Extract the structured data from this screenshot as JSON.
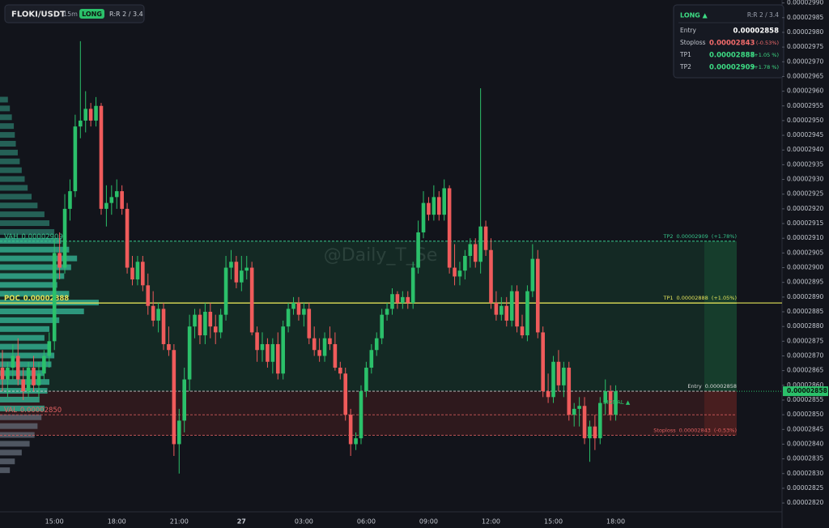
{
  "header": {
    "symbol": "FLOKI/USDT",
    "interval": "15m",
    "side": "LONG",
    "rr": "R:R 2 / 3.4"
  },
  "panel": {
    "side": "LONG ▲",
    "rr": "R:R 2 / 3.4",
    "rows": [
      {
        "label": "Entry",
        "value": 2.858e-05,
        "color": "#ffffff"
      },
      {
        "label": "Stoploss",
        "value": 2.843e-05,
        "pct": "(-0.53%)",
        "color": "#f26b6b"
      },
      {
        "label": "TP1",
        "value": 2.888e-05,
        "pct": "(+1.05 %)",
        "color": "#3ddc84"
      },
      {
        "label": "TP2",
        "value": 2.909e-05,
        "pct": "(+1.78 %)",
        "color": "#3ddc84"
      }
    ]
  },
  "watermark": "@Daily_T_Se",
  "chart_data": {
    "type": "candlestick",
    "up_color": "#2bc06a",
    "down_color": "#ef5b5b",
    "ylim": [
      2.817e-05,
      2.991e-05
    ],
    "yticks": [
      {
        "value": 2.82e-05,
        "label": "0.00002820"
      },
      2.825e-05,
      {
        "value": 2.83e-05,
        "label": "0.00002830"
      },
      2.835e-05,
      {
        "value": 2.84e-05,
        "label": "0.00002840"
      },
      2.845e-05,
      {
        "value": 2.85e-05,
        "label": "0.00002850"
      },
      2.855e-05,
      {
        "value": 2.86e-05,
        "label": "0.00002860"
      },
      2.865e-05,
      {
        "value": 2.87e-05,
        "label": "0.00002870"
      },
      2.875e-05,
      {
        "value": 2.88e-05,
        "label": "0.00002880"
      },
      2.885e-05,
      {
        "value": 2.89e-05,
        "label": "0.00002890"
      },
      2.895e-05,
      {
        "value": 2.9e-05,
        "label": "0.00002900"
      },
      2.905e-05,
      {
        "value": 2.91e-05,
        "label": "0.00002910"
      },
      2.915e-05,
      {
        "value": 2.92e-05,
        "label": "0.00002920"
      },
      2.925e-05,
      {
        "value": 2.93e-05,
        "label": "0.00002930"
      },
      2.935e-05,
      {
        "value": 2.94e-05,
        "label": "0.00002940"
      },
      2.945e-05,
      {
        "value": 2.95e-05,
        "label": "0.00002950"
      },
      2.955e-05,
      {
        "value": 2.96e-05,
        "label": "0.00002960"
      },
      2.965e-05,
      {
        "value": 2.97e-05,
        "label": "0.00002970"
      },
      2.975e-05,
      {
        "value": 2.98e-05,
        "label": "0.00002980"
      },
      2.985e-05,
      {
        "value": 2.99e-05,
        "label": "0.00002990"
      }
    ],
    "categories": [
      null,
      null,
      null,
      null,
      null,
      null,
      null,
      null,
      null,
      null,
      "15:00",
      null,
      null,
      null,
      null,
      null,
      null,
      null,
      null,
      null,
      null,
      null,
      "18:00",
      null,
      null,
      null,
      null,
      null,
      null,
      null,
      null,
      null,
      null,
      null,
      "21:00",
      null,
      null,
      null,
      null,
      null,
      null,
      null,
      null,
      null,
      null,
      null,
      "27",
      null,
      null,
      null,
      null,
      null,
      null,
      null,
      null,
      null,
      null,
      null,
      "03:00",
      null,
      null,
      null,
      null,
      null,
      null,
      null,
      null,
      null,
      null,
      null,
      "06:00",
      null,
      null,
      null,
      null,
      null,
      null,
      null,
      null,
      null,
      null,
      null,
      "09:00",
      null,
      null,
      null,
      null,
      null,
      null,
      null,
      null,
      null,
      null,
      null,
      "12:00",
      null,
      null,
      null,
      null,
      null,
      null,
      null,
      null,
      null,
      null,
      null,
      "15:00",
      null,
      null,
      null,
      null,
      null,
      null,
      null,
      null,
      null,
      null,
      null,
      "18:00"
    ],
    "candles": [
      [
        2.866e-05,
        2.872e-05,
        2.858e-05,
        2.862e-05
      ],
      [
        2.862e-05,
        2.868e-05,
        2.856e-05,
        2.866e-05
      ],
      [
        2.866e-05,
        2.874e-05,
        2.862e-05,
        2.87e-05
      ],
      [
        2.87e-05,
        2.876e-05,
        2.86e-05,
        2.862e-05
      ],
      [
        2.862e-05,
        2.866e-05,
        2.855e-05,
        2.858e-05
      ],
      [
        2.858e-05,
        2.868e-05,
        2.856e-05,
        2.866e-05
      ],
      [
        2.866e-05,
        2.87e-05,
        2.858e-05,
        2.86e-05
      ],
      [
        2.86e-05,
        2.868e-05,
        2.856e-05,
        2.864e-05
      ],
      [
        2.864e-05,
        2.872e-05,
        2.862e-05,
        2.87e-05
      ],
      [
        2.87e-05,
        2.878e-05,
        2.866e-05,
        2.875e-05
      ],
      [
        2.875e-05,
        2.91e-05,
        2.872e-05,
        2.905e-05
      ],
      [
        2.905e-05,
        2.912e-05,
        2.896e-05,
        2.9e-05
      ],
      [
        2.9e-05,
        2.925e-05,
        2.898e-05,
        2.92e-05
      ],
      [
        2.92e-05,
        2.93e-05,
        2.916e-05,
        2.926e-05
      ],
      [
        2.926e-05,
        2.952e-05,
        2.924e-05,
        2.948e-05
      ],
      [
        2.948e-05,
        2.977e-05,
        2.944e-05,
        2.95e-05
      ],
      [
        2.95e-05,
        2.96e-05,
        2.946e-05,
        2.954e-05
      ],
      [
        2.954e-05,
        2.956e-05,
        2.948e-05,
        2.95e-05
      ],
      [
        2.95e-05,
        2.958e-05,
        2.948e-05,
        2.955e-05
      ],
      [
        2.955e-05,
        2.956e-05,
        2.918e-05,
        2.92e-05
      ],
      [
        2.92e-05,
        2.928e-05,
        2.914e-05,
        2.922e-05
      ],
      [
        2.922e-05,
        2.928e-05,
        2.918e-05,
        2.924e-05
      ],
      [
        2.924e-05,
        2.93e-05,
        2.92e-05,
        2.926e-05
      ],
      [
        2.926e-05,
        2.928e-05,
        2.918e-05,
        2.92e-05
      ],
      [
        2.92e-05,
        2.922e-05,
        2.898e-05,
        2.9e-05
      ],
      [
        2.9e-05,
        2.904e-05,
        2.894e-05,
        2.896e-05
      ],
      [
        2.896e-05,
        2.904e-05,
        2.894e-05,
        2.902e-05
      ],
      [
        2.902e-05,
        2.904e-05,
        2.892e-05,
        2.894e-05
      ],
      [
        2.894e-05,
        2.898e-05,
        2.884e-05,
        2.887e-05
      ],
      [
        2.887e-05,
        2.892e-05,
        2.88e-05,
        2.882e-05
      ],
      [
        2.882e-05,
        2.888e-05,
        2.878e-05,
        2.886e-05
      ],
      [
        2.886e-05,
        2.888e-05,
        2.872e-05,
        2.874e-05
      ],
      [
        2.874e-05,
        2.88e-05,
        2.87e-05,
        2.872e-05
      ],
      [
        2.872e-05,
        2.874e-05,
        2.836e-05,
        2.84e-05
      ],
      [
        2.84e-05,
        2.852e-05,
        2.83e-05,
        2.848e-05
      ],
      [
        2.848e-05,
        2.866e-05,
        2.844e-05,
        2.862e-05
      ],
      [
        2.862e-05,
        2.884e-05,
        2.858e-05,
        2.88e-05
      ],
      [
        2.88e-05,
        2.886e-05,
        2.876e-05,
        2.884e-05
      ],
      [
        2.884e-05,
        2.886e-05,
        2.874e-05,
        2.877e-05
      ],
      [
        2.877e-05,
        2.888e-05,
        2.874e-05,
        2.885e-05
      ],
      [
        2.885e-05,
        2.888e-05,
        2.876e-05,
        2.88e-05
      ],
      [
        2.88e-05,
        2.884e-05,
        2.874e-05,
        2.878e-05
      ],
      [
        2.878e-05,
        2.886e-05,
        2.876e-05,
        2.884e-05
      ],
      [
        2.884e-05,
        2.904e-05,
        2.882e-05,
        2.9e-05
      ],
      [
        2.9e-05,
        2.906e-05,
        2.896e-05,
        2.902e-05
      ],
      [
        2.902e-05,
        2.904e-05,
        2.893e-05,
        2.895e-05
      ],
      [
        2.895e-05,
        2.904e-05,
        2.892e-05,
        2.899e-05
      ],
      [
        2.899e-05,
        2.904e-05,
        2.896e-05,
        2.9e-05
      ],
      [
        2.9e-05,
        2.902e-05,
        2.877e-05,
        2.878e-05
      ],
      [
        2.878e-05,
        2.88e-05,
        2.868e-05,
        2.872e-05
      ],
      [
        2.872e-05,
        2.878e-05,
        2.868e-05,
        2.874e-05
      ],
      [
        2.874e-05,
        2.876e-05,
        2.866e-05,
        2.868e-05
      ],
      [
        2.868e-05,
        2.876e-05,
        2.864e-05,
        2.874e-05
      ],
      [
        2.874e-05,
        2.878e-05,
        2.862e-05,
        2.864e-05
      ],
      [
        2.864e-05,
        2.882e-05,
        2.862e-05,
        2.88e-05
      ],
      [
        2.88e-05,
        2.888e-05,
        2.878e-05,
        2.886e-05
      ],
      [
        2.886e-05,
        2.89e-05,
        2.884e-05,
        2.888e-05
      ],
      [
        2.888e-05,
        2.89e-05,
        2.882e-05,
        2.884e-05
      ],
      [
        2.884e-05,
        2.888e-05,
        2.88e-05,
        2.886e-05
      ],
      [
        2.886e-05,
        2.888e-05,
        2.874e-05,
        2.876e-05
      ],
      [
        2.876e-05,
        2.88e-05,
        2.87e-05,
        2.872e-05
      ],
      [
        2.872e-05,
        2.876e-05,
        2.868e-05,
        2.87e-05
      ],
      [
        2.87e-05,
        2.878e-05,
        2.868e-05,
        2.876e-05
      ],
      [
        2.876e-05,
        2.88e-05,
        2.872e-05,
        2.874e-05
      ],
      [
        2.874e-05,
        2.878e-05,
        2.865e-05,
        2.866e-05
      ],
      [
        2.866e-05,
        2.868e-05,
        2.862e-05,
        2.864e-05
      ],
      [
        2.864e-05,
        2.866e-05,
        2.848e-05,
        2.85e-05
      ],
      [
        2.85e-05,
        2.852e-05,
        2.836e-05,
        2.84e-05
      ],
      [
        2.84e-05,
        2.844e-05,
        2.838e-05,
        2.842e-05
      ],
      [
        2.842e-05,
        2.86e-05,
        2.84e-05,
        2.858e-05
      ],
      [
        2.858e-05,
        2.868e-05,
        2.856e-05,
        2.866e-05
      ],
      [
        2.866e-05,
        2.874e-05,
        2.864e-05,
        2.872e-05
      ],
      [
        2.872e-05,
        2.878e-05,
        2.87e-05,
        2.876e-05
      ],
      [
        2.876e-05,
        2.886e-05,
        2.874e-05,
        2.884e-05
      ],
      [
        2.884e-05,
        2.888e-05,
        2.882e-05,
        2.886e-05
      ],
      [
        2.886e-05,
        2.893e-05,
        2.884e-05,
        2.891e-05
      ],
      [
        2.891e-05,
        2.892e-05,
        2.886e-05,
        2.888e-05
      ],
      [
        2.888e-05,
        2.892e-05,
        2.886e-05,
        2.89e-05
      ],
      [
        2.89e-05,
        2.892e-05,
        2.886e-05,
        2.888e-05
      ],
      [
        2.888e-05,
        2.902e-05,
        2.886e-05,
        2.9e-05
      ],
      [
        2.9e-05,
        2.916e-05,
        2.898e-05,
        2.912e-05
      ],
      [
        2.912e-05,
        2.926e-05,
        2.91e-05,
        2.922e-05
      ],
      [
        2.922e-05,
        2.924e-05,
        2.916e-05,
        2.918e-05
      ],
      [
        2.918e-05,
        2.928e-05,
        2.916e-05,
        2.924e-05
      ],
      [
        2.924e-05,
        2.926e-05,
        2.916e-05,
        2.918e-05
      ],
      [
        2.918e-05,
        2.93e-05,
        2.916e-05,
        2.927e-05
      ],
      [
        2.927e-05,
        2.928e-05,
        2.898e-05,
        2.9e-05
      ],
      [
        2.9e-05,
        2.908e-05,
        2.894e-05,
        2.897e-05
      ],
      [
        2.897e-05,
        2.902e-05,
        2.894e-05,
        2.899e-05
      ],
      [
        2.899e-05,
        2.906e-05,
        2.896e-05,
        2.904e-05
      ],
      [
        2.904e-05,
        2.91e-05,
        2.9e-05,
        2.908e-05
      ],
      [
        2.908e-05,
        2.91e-05,
        2.9e-05,
        2.902e-05
      ],
      [
        2.902e-05,
        2.961e-05,
        2.898e-05,
        2.914e-05
      ],
      [
        2.914e-05,
        2.916e-05,
        2.904e-05,
        2.906e-05
      ],
      [
        2.906e-05,
        2.91e-05,
        2.886e-05,
        2.888e-05
      ],
      [
        2.888e-05,
        2.892e-05,
        2.882e-05,
        2.884e-05
      ],
      [
        2.884e-05,
        2.89e-05,
        2.882e-05,
        2.887e-05
      ],
      [
        2.887e-05,
        2.89e-05,
        2.88e-05,
        2.882e-05
      ],
      [
        2.882e-05,
        2.894e-05,
        2.88e-05,
        2.892e-05
      ],
      [
        2.892e-05,
        2.894e-05,
        2.878e-05,
        2.88e-05
      ],
      [
        2.88e-05,
        2.884e-05,
        2.876e-05,
        2.877e-05
      ],
      [
        2.877e-05,
        2.894e-05,
        2.875e-05,
        2.892e-05
      ],
      [
        2.892e-05,
        2.908e-05,
        2.89e-05,
        2.903e-05
      ],
      [
        2.903e-05,
        2.906e-05,
        2.876e-05,
        2.878e-05
      ],
      [
        2.878e-05,
        2.88e-05,
        2.856e-05,
        2.858e-05
      ],
      [
        2.858e-05,
        2.864e-05,
        2.854e-05,
        2.856e-05
      ],
      [
        2.856e-05,
        2.87e-05,
        2.854e-05,
        2.868e-05
      ],
      [
        2.868e-05,
        2.872e-05,
        2.858e-05,
        2.86e-05
      ],
      [
        2.86e-05,
        2.868e-05,
        2.856e-05,
        2.866e-05
      ],
      [
        2.866e-05,
        2.868e-05,
        2.848e-05,
        2.85e-05
      ],
      [
        2.85e-05,
        2.854e-05,
        2.846e-05,
        2.852e-05
      ],
      [
        2.852e-05,
        2.856e-05,
        2.846e-05,
        2.853e-05
      ],
      [
        2.853e-05,
        2.856e-05,
        2.84e-05,
        2.842e-05
      ],
      [
        2.842e-05,
        2.848e-05,
        2.834e-05,
        2.846e-05
      ],
      [
        2.846e-05,
        2.85e-05,
        2.838e-05,
        2.842e-05
      ],
      [
        2.842e-05,
        2.856e-05,
        2.84e-05,
        2.854e-05
      ],
      [
        2.854e-05,
        2.862e-05,
        2.85e-05,
        2.858e-05
      ],
      [
        2.858e-05,
        2.86e-05,
        2.848e-05,
        2.85e-05
      ],
      [
        2.85e-05,
        2.86e-05,
        2.848e-05,
        2.858e-05
      ]
    ],
    "last_price": 2.858e-05,
    "last_color": "#2bc06a",
    "signal": "SIGNAL ▲",
    "levels": [
      {
        "name": "VAH",
        "value": 2.909e-05,
        "color": "#35c38a",
        "dash": true,
        "side": "left"
      },
      {
        "name": "POC",
        "value": 2.888e-05,
        "color": "#e3e35a",
        "dash": false,
        "side": "left"
      },
      {
        "name": "VAL",
        "value": 2.85e-05,
        "value_label": "0.00002850",
        "color": "#e06060",
        "dash": true,
        "side": "left"
      },
      {
        "name": "TP2",
        "value": 2.909e-05,
        "note": "(+1.78%)",
        "color": "#35c38a",
        "dash": true,
        "side": "right"
      },
      {
        "name": "TP1",
        "value": 2.888e-05,
        "note": "(+1.05%)",
        "color": "#e3e35a",
        "dash": false,
        "side": "right"
      },
      {
        "name": "Entry",
        "value": 2.858e-05,
        "color": "#d8d8d8",
        "dash": true,
        "side": "right"
      },
      {
        "name": "Stoploss",
        "value": 2.843e-05,
        "note": "(-0.53%)",
        "color": "#e06060",
        "dash": true,
        "side": "right"
      }
    ],
    "volume_profile": {
      "color_above": "#2b7466",
      "color_in": "#33b394",
      "color_below": "#5f6673",
      "prices": [
        2.957e-05,
        2.954e-05,
        2.951e-05,
        2.948e-05,
        2.945e-05,
        2.942e-05,
        2.939e-05,
        2.936e-05,
        2.933e-05,
        2.93e-05,
        2.927e-05,
        2.924e-05,
        2.921e-05,
        2.918e-05,
        2.915e-05,
        2.912e-05,
        2.909e-05,
        2.906e-05,
        2.903e-05,
        2.9e-05,
        2.897e-05,
        2.894e-05,
        2.891e-05,
        2.888e-05,
        2.885e-05,
        2.882e-05,
        2.879e-05,
        2.876e-05,
        2.873e-05,
        2.87e-05,
        2.867e-05,
        2.864e-05,
        2.861e-05,
        2.858e-05,
        2.855e-05,
        2.852e-05,
        2.849e-05,
        2.846e-05,
        2.843e-05,
        2.84e-05,
        2.837e-05,
        2.834e-05,
        2.831e-05
      ],
      "values": [
        8,
        10,
        12,
        14,
        15,
        16,
        18,
        20,
        22,
        25,
        28,
        32,
        38,
        45,
        50,
        55,
        62,
        70,
        78,
        72,
        65,
        58,
        70,
        100,
        85,
        60,
        50,
        45,
        48,
        55,
        52,
        45,
        50,
        48,
        40,
        45,
        42,
        38,
        35,
        30,
        22,
        15,
        10
      ]
    }
  }
}
